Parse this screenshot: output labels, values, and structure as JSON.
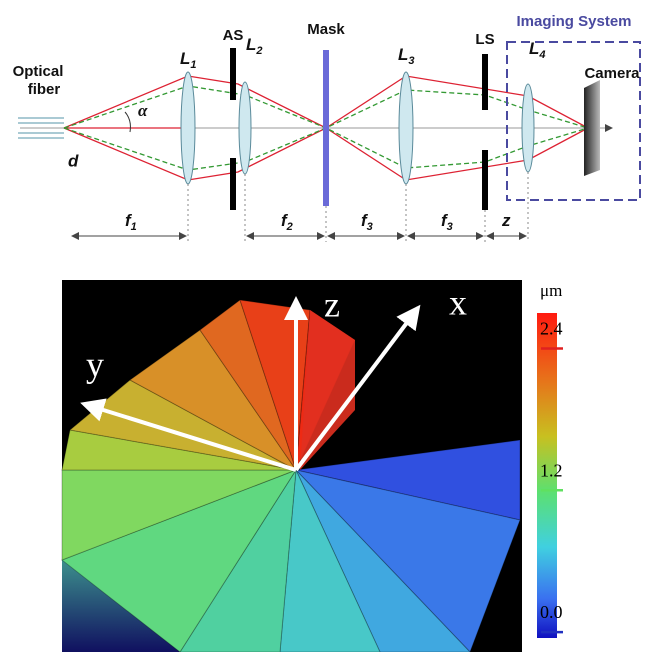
{
  "diagram": {
    "fiber_label": [
      "Optical",
      "fiber"
    ],
    "d_label": "d",
    "alpha_label": "α",
    "components": [
      {
        "letter": "L",
        "sub": "1"
      },
      {
        "letter": "AS"
      },
      {
        "letter": "L",
        "sub": "2"
      },
      {
        "letter": "Mask"
      },
      {
        "letter": "L",
        "sub": "3"
      },
      {
        "letter": "LS"
      },
      {
        "letter": "L",
        "sub": "4"
      }
    ],
    "imaging_system": "Imaging System",
    "camera": "Camera",
    "distances": [
      {
        "letter": "f",
        "sub": "1"
      },
      {
        "letter": "f",
        "sub": "2"
      },
      {
        "letter": "f",
        "sub": "3"
      },
      {
        "letter": "f",
        "sub": "3"
      },
      {
        "letter": "z"
      }
    ]
  },
  "surface_plot": {
    "axis_labels": [
      "z",
      "x",
      "y"
    ],
    "colorbar": {
      "unit": "μm",
      "clim": [
        -0.05,
        2.7
      ],
      "ticks": [
        2.4,
        1.2,
        {
          "value": 0,
          "label": "0.0"
        }
      ]
    }
  }
}
